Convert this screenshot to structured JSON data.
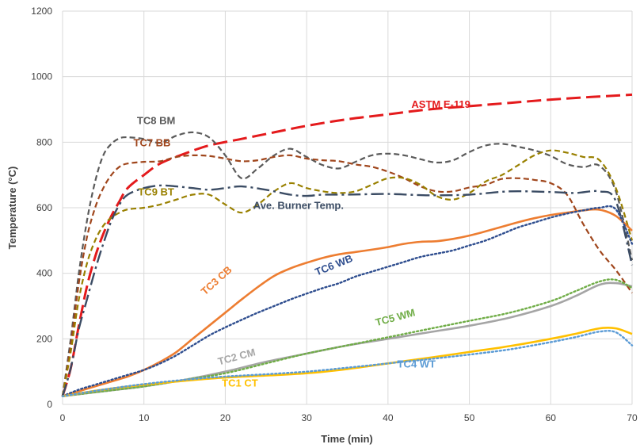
{
  "chart_data": {
    "type": "line",
    "title": "",
    "xlabel": "Time (min)",
    "ylabel": "Temperature (°C)",
    "xlim": [
      0,
      70
    ],
    "ylim": [
      0,
      1200
    ],
    "xticks": [
      0,
      10,
      20,
      30,
      40,
      50,
      60,
      70
    ],
    "yticks": [
      0,
      200,
      400,
      600,
      800,
      1000,
      1200
    ],
    "grid": true,
    "legend": "none",
    "series": [
      {
        "name": "ASTM E-119",
        "color": "#e41a1c",
        "dash": "dash-long",
        "width": 3,
        "label_pos": [
          46.5,
          905
        ],
        "x": [
          0,
          1,
          2,
          3,
          4,
          5,
          6,
          7,
          8,
          10,
          12,
          15,
          18,
          22,
          26,
          30,
          35,
          40,
          45,
          50,
          55,
          60,
          65,
          70
        ],
        "y": [
          25,
          110,
          240,
          360,
          450,
          520,
          575,
          620,
          660,
          700,
          735,
          765,
          790,
          810,
          830,
          850,
          870,
          885,
          900,
          910,
          920,
          930,
          938,
          945
        ]
      },
      {
        "name": "TC8 BM",
        "color": "#5a5a5a",
        "dash": "dash",
        "width": 2.2,
        "label_pos": [
          11.5,
          855
        ],
        "x": [
          0,
          1,
          2,
          3,
          4,
          5,
          6,
          7,
          8,
          10,
          12,
          14,
          16,
          18,
          20,
          22,
          24,
          26,
          28,
          30,
          32,
          34,
          36,
          38,
          40,
          42,
          44,
          46,
          48,
          50,
          52,
          54,
          56,
          58,
          60,
          62,
          64,
          66,
          68,
          70
        ],
        "y": [
          25,
          200,
          400,
          560,
          680,
          760,
          795,
          812,
          815,
          810,
          798,
          820,
          830,
          815,
          760,
          690,
          720,
          760,
          780,
          755,
          730,
          720,
          740,
          760,
          765,
          760,
          748,
          738,
          745,
          770,
          790,
          795,
          786,
          775,
          758,
          733,
          724,
          728,
          650,
          440
        ]
      },
      {
        "name": "TC7 BB",
        "color": "#a0461c",
        "dash": "dash",
        "width": 2.2,
        "label_pos": [
          11,
          788
        ],
        "x": [
          0,
          1,
          2,
          3,
          4,
          5,
          6,
          7,
          8,
          10,
          12,
          14,
          16,
          18,
          20,
          22,
          24,
          26,
          28,
          30,
          32,
          34,
          36,
          38,
          40,
          42,
          44,
          46,
          48,
          50,
          52,
          54,
          56,
          58,
          60,
          62,
          64,
          66,
          68,
          70
        ],
        "y": [
          25,
          180,
          370,
          510,
          600,
          660,
          700,
          725,
          735,
          740,
          742,
          755,
          760,
          758,
          750,
          742,
          745,
          755,
          760,
          750,
          745,
          742,
          732,
          725,
          710,
          690,
          665,
          650,
          650,
          662,
          670,
          688,
          690,
          685,
          675,
          640,
          550,
          470,
          410,
          340
        ]
      },
      {
        "name": "TC9 BT",
        "color": "#998000",
        "dash": "dash",
        "width": 2.2,
        "label_pos": [
          11.5,
          638
        ],
        "x": [
          0,
          1,
          2,
          3,
          4,
          5,
          6,
          7,
          8,
          10,
          12,
          14,
          16,
          18,
          20,
          22,
          24,
          26,
          28,
          30,
          32,
          34,
          36,
          38,
          40,
          42,
          44,
          46,
          48,
          50,
          52,
          54,
          56,
          58,
          60,
          62,
          64,
          66,
          68,
          70
        ],
        "y": [
          25,
          160,
          320,
          430,
          500,
          545,
          570,
          585,
          595,
          600,
          610,
          625,
          640,
          640,
          610,
          585,
          610,
          650,
          675,
          660,
          650,
          645,
          650,
          670,
          690,
          690,
          670,
          635,
          625,
          645,
          680,
          700,
          730,
          760,
          775,
          768,
          755,
          745,
          660,
          500
        ]
      },
      {
        "name": "Ave. Burner Temp.",
        "color": "#3b4c64",
        "dash": "dashdot",
        "width": 2.4,
        "label_pos": [
          29,
          596
        ],
        "x": [
          0,
          1,
          2,
          3,
          4,
          5,
          6,
          7,
          8,
          10,
          12,
          14,
          16,
          18,
          20,
          22,
          25,
          28,
          30,
          32,
          35,
          40,
          45,
          50,
          55,
          60,
          63,
          66,
          68,
          70
        ],
        "y": [
          25,
          110,
          230,
          320,
          410,
          490,
          560,
          610,
          640,
          660,
          668,
          665,
          660,
          655,
          660,
          665,
          655,
          640,
          636,
          640,
          640,
          642,
          638,
          640,
          650,
          648,
          645,
          650,
          620,
          425
        ]
      },
      {
        "name": "TC3 CB",
        "color": "#ed7d31",
        "dash": "solid",
        "width": 2.6,
        "label_pos": [
          19.2,
          370
        ],
        "rotate": -42,
        "x": [
          0,
          2,
          4,
          6,
          8,
          10,
          12,
          14,
          16,
          18,
          20,
          22,
          24,
          26,
          28,
          30,
          32,
          34,
          36,
          38,
          40,
          42,
          44,
          46,
          48,
          50,
          52,
          54,
          56,
          58,
          60,
          62,
          64,
          66,
          68,
          70
        ],
        "y": [
          25,
          40,
          55,
          70,
          85,
          105,
          130,
          160,
          200,
          240,
          280,
          320,
          358,
          392,
          415,
          432,
          447,
          458,
          465,
          472,
          480,
          490,
          496,
          498,
          505,
          515,
          528,
          542,
          556,
          568,
          578,
          585,
          592,
          594,
          575,
          530
        ]
      },
      {
        "name": "TC6 WB",
        "color": "#2f4e8f",
        "dash": "dot",
        "width": 2.4,
        "label_pos": [
          33.5,
          415
        ],
        "rotate": -22,
        "x": [
          0,
          2,
          4,
          6,
          8,
          10,
          12,
          14,
          16,
          18,
          20,
          22,
          24,
          26,
          28,
          30,
          32,
          34,
          36,
          38,
          40,
          42,
          44,
          46,
          48,
          50,
          52,
          54,
          56,
          58,
          60,
          62,
          64,
          66,
          68,
          70
        ],
        "y": [
          25,
          45,
          60,
          75,
          90,
          105,
          125,
          150,
          180,
          210,
          235,
          258,
          280,
          300,
          320,
          338,
          355,
          370,
          390,
          405,
          420,
          435,
          450,
          460,
          470,
          485,
          500,
          520,
          540,
          555,
          570,
          582,
          592,
          600,
          595,
          490
        ]
      },
      {
        "name": "TC2 CM",
        "color": "#a5a5a5",
        "dash": "solid",
        "width": 2.6,
        "label_pos": [
          21.5,
          135
        ],
        "rotate": -15,
        "x": [
          0,
          5,
          10,
          15,
          20,
          25,
          30,
          35,
          40,
          45,
          50,
          55,
          60,
          63,
          66,
          68,
          70
        ],
        "y": [
          25,
          40,
          55,
          75,
          100,
          130,
          155,
          180,
          200,
          220,
          240,
          265,
          300,
          330,
          365,
          370,
          360
        ]
      },
      {
        "name": "TC5 WM",
        "color": "#70ad47",
        "dash": "dot",
        "width": 2.4,
        "label_pos": [
          41,
          255
        ],
        "rotate": -15,
        "x": [
          0,
          5,
          10,
          15,
          20,
          25,
          30,
          35,
          40,
          45,
          50,
          55,
          60,
          63,
          66,
          68,
          70
        ],
        "y": [
          25,
          40,
          55,
          75,
          95,
          125,
          155,
          180,
          205,
          230,
          255,
          280,
          315,
          345,
          375,
          380,
          355
        ]
      },
      {
        "name": "TC1 CT",
        "color": "#ffc000",
        "dash": "solid",
        "width": 2.6,
        "label_pos": [
          21.8,
          55
        ],
        "x": [
          0,
          5,
          10,
          15,
          20,
          25,
          30,
          35,
          40,
          45,
          50,
          55,
          60,
          63,
          66,
          68,
          70
        ],
        "y": [
          25,
          45,
          60,
          72,
          82,
          88,
          95,
          108,
          125,
          142,
          160,
          178,
          200,
          215,
          232,
          232,
          215
        ]
      },
      {
        "name": "TC4 WT",
        "color": "#5b9bd5",
        "dash": "dot",
        "width": 2.4,
        "label_pos": [
          43.5,
          112
        ],
        "x": [
          0,
          5,
          10,
          15,
          20,
          25,
          30,
          35,
          40,
          45,
          50,
          55,
          60,
          63,
          66,
          68,
          70
        ],
        "y": [
          25,
          45,
          62,
          75,
          85,
          92,
          100,
          112,
          125,
          138,
          152,
          168,
          190,
          205,
          222,
          220,
          180
        ]
      }
    ]
  }
}
